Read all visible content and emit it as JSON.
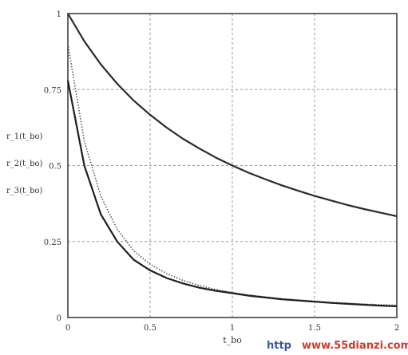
{
  "chart_data": {
    "type": "line",
    "xlabel": "t_bo",
    "ylabel_lines": [
      "r_1(t_bo)",
      "r_2(t_bo)",
      "r_3(t_bo)"
    ],
    "xlim": [
      0,
      2
    ],
    "ylim": [
      0,
      1
    ],
    "x_ticks": [
      "0",
      "0.5",
      "1",
      "1.5",
      "2"
    ],
    "y_ticks": [
      "0",
      "0.25",
      "0.5",
      "0.75",
      "1"
    ],
    "grid": true,
    "x": [
      0,
      0.1,
      0.2,
      0.3,
      0.4,
      0.5,
      0.6,
      0.7,
      0.8,
      0.9,
      1.0,
      1.1,
      1.2,
      1.3,
      1.4,
      1.5,
      1.6,
      1.7,
      1.8,
      1.9,
      2.0
    ],
    "series": [
      {
        "values": [
          1.0,
          0.909,
          0.833,
          0.769,
          0.714,
          0.667,
          0.625,
          0.588,
          0.556,
          0.526,
          0.5,
          0.476,
          0.455,
          0.435,
          0.417,
          0.4,
          0.385,
          0.37,
          0.357,
          0.345,
          0.333
        ],
        "color": "#2b2b2b",
        "dash": "solid"
      },
      {
        "values": [
          0.9,
          0.58,
          0.4,
          0.29,
          0.22,
          0.175,
          0.145,
          0.122,
          0.105,
          0.092,
          0.082,
          0.074,
          0.068,
          0.062,
          0.058,
          0.054,
          0.05,
          0.047,
          0.044,
          0.042,
          0.04
        ],
        "color": "#555555",
        "dash": "dotted"
      },
      {
        "values": [
          0.78,
          0.5,
          0.34,
          0.25,
          0.19,
          0.155,
          0.13,
          0.112,
          0.098,
          0.088,
          0.08,
          0.072,
          0.066,
          0.06,
          0.056,
          0.052,
          0.048,
          0.045,
          0.042,
          0.039,
          0.037
        ],
        "color": "#1f1f1f",
        "dash": "solid"
      }
    ]
  },
  "watermark": {
    "part1": "http",
    "part2": "www.55dianzi.com"
  }
}
